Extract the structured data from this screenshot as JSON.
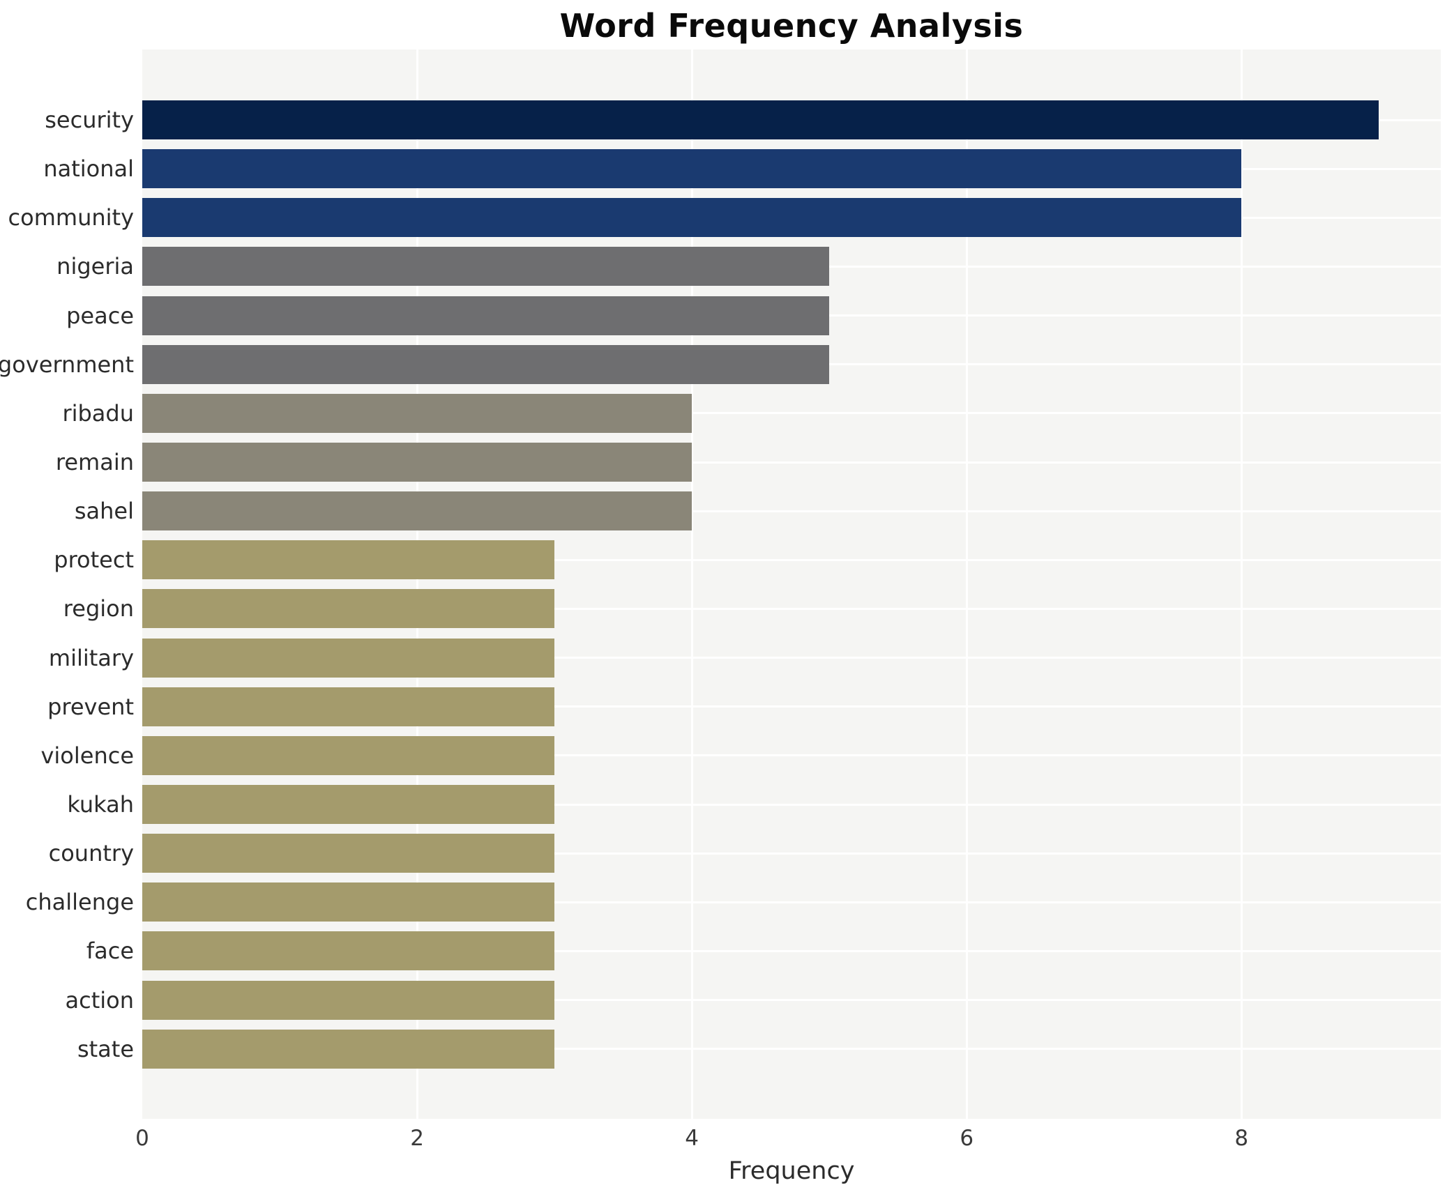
{
  "chart": {
    "title": "Word Frequency Analysis",
    "xlabel": "Frequency",
    "plot_background": "#f5f5f3",
    "grid_color": "#ffffff",
    "label_color": "#2b2b2b",
    "tick_color": "#3a3a3a"
  },
  "chart_data": {
    "type": "bar",
    "orientation": "horizontal",
    "title": "Word Frequency Analysis",
    "xlabel": "Frequency",
    "ylabel": "",
    "xlim": [
      0,
      9.45
    ],
    "x_ticks": [
      0,
      2,
      4,
      6,
      8
    ],
    "grid": true,
    "legend": false,
    "categories": [
      "security",
      "national",
      "community",
      "nigeria",
      "peace",
      "government",
      "ribadu",
      "remain",
      "sahel",
      "protect",
      "region",
      "military",
      "prevent",
      "violence",
      "kukah",
      "country",
      "challenge",
      "face",
      "action",
      "state"
    ],
    "values": [
      9,
      8,
      8,
      5,
      5,
      5,
      4,
      4,
      4,
      3,
      3,
      3,
      3,
      3,
      3,
      3,
      3,
      3,
      3,
      3
    ],
    "bar_colors": [
      "#062149",
      "#1a3a70",
      "#1a3a70",
      "#6e6e70",
      "#6e6e70",
      "#6e6e70",
      "#8a8678",
      "#8a8678",
      "#8a8678",
      "#a49b6c",
      "#a49b6c",
      "#a49b6c",
      "#a49b6c",
      "#a49b6c",
      "#a49b6c",
      "#a49b6c",
      "#a49b6c",
      "#a49b6c",
      "#a49b6c",
      "#a49b6c"
    ]
  }
}
